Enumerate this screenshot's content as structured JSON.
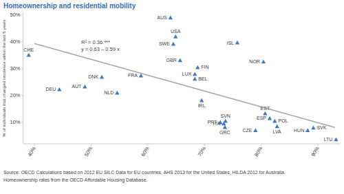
{
  "chart_data": {
    "type": "scatter",
    "title": "Homeownership and residential mobility",
    "y_label": "% of individuals that changed residence within the last 5 years",
    "labels": [
      "CHE",
      "DEU",
      "AUT",
      "DNK",
      "NLD",
      "FRA",
      "AUS",
      "USA",
      "SWE",
      "GBR",
      "FIN",
      "LUX",
      "BEL",
      "ISL",
      "NOR",
      "IRL",
      "EST",
      "ESP",
      "POL",
      "SVN",
      "PRT",
      "ITA",
      "GRC",
      "LVA",
      "CZE",
      "HUN",
      "SVK",
      "LTU"
    ],
    "x": [
      39.0,
      44.4,
      48.9,
      51.9,
      54.6,
      58.8,
      64.0,
      64.9,
      64.5,
      65.7,
      68.8,
      68.3,
      68.3,
      75.8,
      80.4,
      69.5,
      80.7,
      81.5,
      82.4,
      73.7,
      72.8,
      73.4,
      73.6,
      82.8,
      79.0,
      88.2,
      89.2,
      93.2
    ],
    "values": [
      35.1,
      22.3,
      23.3,
      26.9,
      21.0,
      27.4,
      49.0,
      42.0,
      39.2,
      33.1,
      30.5,
      28.0,
      26.2,
      39.7,
      32.6,
      18.2,
      13.3,
      11.5,
      10.5,
      10.5,
      10.0,
      9.5,
      8.2,
      8.5,
      7.0,
      7.0,
      8.0,
      3.6
    ],
    "color": "#3b7cc4",
    "marker": "triangle",
    "trendline": {
      "x": [
        40,
        93
      ],
      "values": [
        39.4,
        8.1
      ],
      "color": "#a6a6a6"
    },
    "annotations": [
      "R² = 0.36 ***",
      "y = 0.63 – 0.59 x"
    ],
    "xlim": [
      38,
      94
    ],
    "ylim": [
      2,
      51
    ],
    "xticks": [
      {
        "value": 40,
        "label": "40%"
      },
      {
        "value": 50,
        "label": "50%"
      },
      {
        "value": 60,
        "label": "60%"
      },
      {
        "value": 70,
        "label": "70%"
      },
      {
        "value": 80,
        "label": "80%"
      },
      {
        "value": 90,
        "label": "90%"
      }
    ],
    "yticks": [
      {
        "value": 10,
        "label": "10%"
      },
      {
        "value": 20,
        "label": "20%"
      },
      {
        "value": 30,
        "label": "30%"
      },
      {
        "value": 40,
        "label": "40%"
      },
      {
        "value": 50,
        "label": "50%"
      }
    ],
    "grid": false,
    "source": [
      "Source: OECD Calculations based on 2012 EU SILC Data for EU countries, AHS 2013 for the United States, HILDA 2012 for Australia.",
      "Homeownership rates from the OECD Affordable Housing Database."
    ]
  }
}
